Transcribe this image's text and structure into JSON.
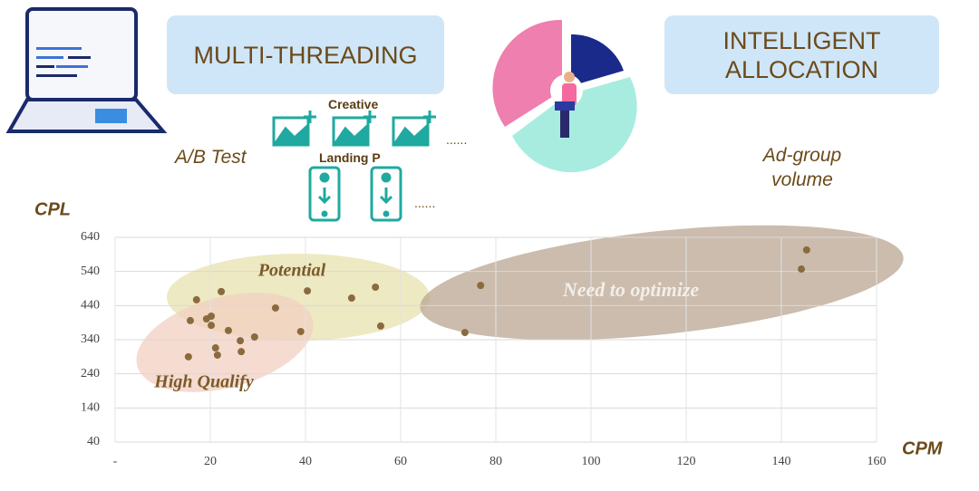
{
  "header": {
    "left_box": "MULTI-THREADING",
    "right_box": "INTELLIGENT ALLOCATION",
    "ab_test": "A/B Test",
    "creative": "Creative",
    "landing": "Landing P",
    "creative_more": "......",
    "landing_more": "......",
    "ad_group": "Ad-group volume"
  },
  "chart_data": {
    "type": "scatter",
    "x_label": "CPM",
    "y_label": "CPL",
    "color": "#8b6a3e",
    "grid": true,
    "xlim": [
      0,
      160
    ],
    "xticks": [
      {
        "value": 0,
        "label": "-"
      },
      20,
      40,
      60,
      80,
      100,
      120,
      140,
      160
    ],
    "ylim": [
      40,
      640
    ],
    "yticks": [
      40,
      140,
      240,
      340,
      440,
      540,
      640
    ],
    "annotations": [
      "Potential",
      "High Qualify",
      "Need to optimize"
    ],
    "x": [
      17.1,
      22.3,
      15.8,
      19.2,
      20.2,
      20.2,
      23.8,
      33.7,
      40.4,
      39.0,
      26.3,
      29.3,
      21.1,
      21.5,
      15.4,
      26.5,
      49.7,
      54.7,
      55.8,
      76.8,
      73.5,
      145.3,
      144.2
    ],
    "values": [
      457,
      481,
      396,
      401,
      409,
      382,
      367,
      433,
      483,
      364,
      337,
      348,
      316,
      295,
      290,
      305,
      462,
      494,
      380,
      499,
      361,
      603,
      547
    ]
  }
}
